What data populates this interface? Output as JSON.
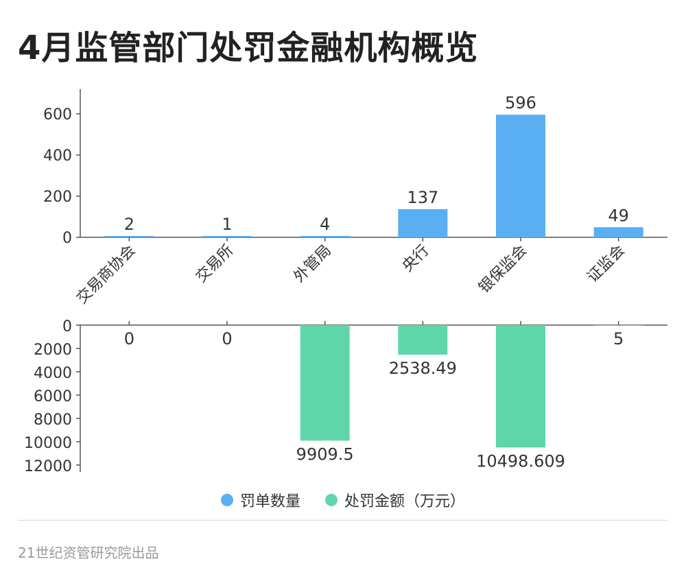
{
  "title": "4月监管部门处罚金融机构概览",
  "footer": "21世纪资管研究院出品",
  "chart_data": [
    {
      "type": "bar",
      "categories": [
        "交易商协会",
        "交易所",
        "外管局",
        "央行",
        "银保监会",
        "证监会"
      ],
      "series": [
        {
          "name": "罚单数量",
          "values": [
            2,
            1,
            4,
            137,
            596,
            49
          ]
        }
      ],
      "ylim": [
        0,
        720
      ],
      "yticks": [
        0,
        200,
        400,
        600
      ],
      "data_labels": [
        "2",
        "1",
        "4",
        "137",
        "596",
        "49"
      ],
      "color": "#5aaef2"
    },
    {
      "type": "bar",
      "categories": [
        "交易商协会",
        "交易所",
        "外管局",
        "央行",
        "银保监会",
        "证监会"
      ],
      "series": [
        {
          "name": "处罚金额（万元）",
          "values": [
            0,
            0,
            9909.5,
            2538.49,
            10498.609,
            5
          ]
        }
      ],
      "ylim": [
        0,
        12000
      ],
      "yticks": [
        0,
        2000,
        4000,
        6000,
        8000,
        10000,
        12000
      ],
      "inverted": true,
      "data_labels": [
        "0",
        "0",
        "9909.5",
        "2538.49",
        "10498.609",
        "5"
      ],
      "color": "#5fd6a9"
    }
  ],
  "legend": {
    "placement": "bottom-center",
    "items": [
      {
        "label": "罚单数量",
        "color": "#5aaef2"
      },
      {
        "label": "处罚金额（万元）",
        "color": "#5fd6a9"
      }
    ]
  }
}
